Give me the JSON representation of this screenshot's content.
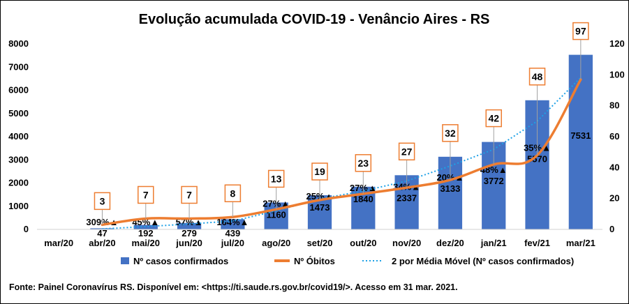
{
  "chart_data": {
    "type": "bar",
    "title": "Evolução acumulada COVID-19 - Venâncio Aires - RS",
    "categories": [
      "mar/20",
      "abr/20",
      "mai/20",
      "jun/20",
      "jul/20",
      "ago/20",
      "set/20",
      "out/20",
      "nov/20",
      "dez/20",
      "jan/21",
      "fev/21",
      "mar/21"
    ],
    "series": [
      {
        "name": "Nº casos confirmados",
        "type": "bar",
        "axis": "left",
        "color": "#4472C4",
        "values": [
          0,
          47,
          192,
          279,
          439,
          1160,
          1473,
          1840,
          2337,
          3133,
          3772,
          5570,
          7531
        ]
      },
      {
        "name": "Nº Óbitos",
        "type": "line",
        "axis": "right",
        "color": "#ED7D31",
        "values": [
          null,
          3,
          7,
          7,
          8,
          13,
          19,
          23,
          27,
          32,
          42,
          48,
          97
        ]
      },
      {
        "name": "2 por Média Móvel (Nº casos confirmados)",
        "type": "trendline",
        "axis": "left",
        "color": "#1EA1E6"
      }
    ],
    "growth_labels": [
      "",
      "309%▲",
      "45%▲",
      "57%▲",
      "164%▲",
      "27%▲",
      "25%▲",
      "27%▲",
      "34%▲",
      "20%▲",
      "48%▲",
      "35%▲",
      ""
    ],
    "ylim_left": [
      0,
      8000
    ],
    "yticks_left": [
      0,
      1000,
      2000,
      3000,
      4000,
      5000,
      6000,
      7000,
      8000
    ],
    "ylim_right": [
      0,
      120
    ],
    "yticks_right": [
      0,
      20,
      40,
      60,
      80,
      100,
      120
    ],
    "grid": false,
    "legend_position": "bottom"
  },
  "source_note": "Fonte: Painel Coronavírus RS. Disponível em: <https://ti.saude.rs.gov.br/covid19/>. Acesso em 31 mar. 2021."
}
